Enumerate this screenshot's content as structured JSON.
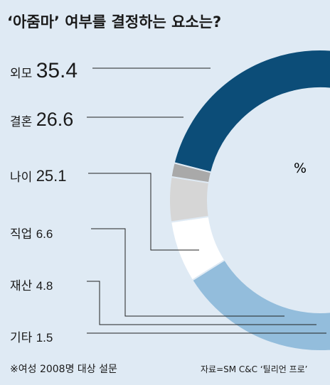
{
  "chart_data": {
    "type": "pie",
    "title": "‘아줌마’ 여부를 결정하는 요소는?",
    "unit": "%",
    "categories": [
      "외모",
      "결혼",
      "나이",
      "직업",
      "재산",
      "기타"
    ],
    "values": [
      35.4,
      26.6,
      25.1,
      6.6,
      4.8,
      1.5
    ],
    "colors": [
      "#0c4d78",
      "#5b87b6",
      "#93bddc",
      "#ffffff",
      "#d6d6d6",
      "#a9a9a9"
    ],
    "footnote": "※여성 2008명 대상 설문",
    "source": "자료=SM C&C ‘틸리언 프로’"
  }
}
